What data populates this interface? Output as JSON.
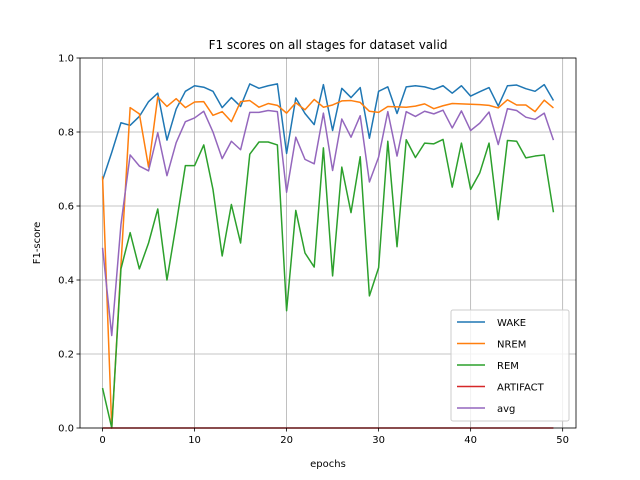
{
  "chart_data": {
    "type": "line",
    "title": "F1 scores on all stages for dataset valid",
    "xlabel": "epochs",
    "ylabel": "F1-score",
    "xlim": [
      -2.45,
      51.45
    ],
    "ylim": [
      0,
      1
    ],
    "xticks": [
      0,
      10,
      20,
      30,
      40,
      50
    ],
    "yticks": [
      0.0,
      0.2,
      0.4,
      0.6,
      0.8,
      1.0
    ],
    "ytick_labels": [
      "0.0",
      "0.2",
      "0.4",
      "0.6",
      "0.8",
      "1.0"
    ],
    "grid": true,
    "legend_position": "lower-right",
    "x": [
      0,
      1,
      2,
      3,
      4,
      5,
      6,
      7,
      8,
      9,
      10,
      11,
      12,
      13,
      14,
      15,
      16,
      17,
      18,
      19,
      20,
      21,
      22,
      23,
      24,
      25,
      26,
      27,
      28,
      29,
      30,
      31,
      32,
      33,
      34,
      35,
      36,
      37,
      38,
      39,
      40,
      41,
      42,
      43,
      44,
      45,
      46,
      47,
      48,
      49
    ],
    "series": [
      {
        "name": "WAKE",
        "color": "#1f77b4",
        "values": [
          0.67,
          0.745,
          0.825,
          0.818,
          0.842,
          0.882,
          0.905,
          0.778,
          0.862,
          0.91,
          0.925,
          0.921,
          0.91,
          0.866,
          0.893,
          0.869,
          0.93,
          0.918,
          0.925,
          0.93,
          0.742,
          0.892,
          0.85,
          0.82,
          0.928,
          0.804,
          0.918,
          0.893,
          0.92,
          0.783,
          0.91,
          0.922,
          0.85,
          0.922,
          0.925,
          0.922,
          0.915,
          0.925,
          0.905,
          0.925,
          0.897,
          0.909,
          0.92,
          0.87,
          0.925,
          0.927,
          0.917,
          0.91,
          0.928,
          0.885
        ]
      },
      {
        "name": "NREM",
        "color": "#ff7f0e",
        "values": [
          0.68,
          0.0,
          0.44,
          0.866,
          0.849,
          0.705,
          0.895,
          0.869,
          0.89,
          0.866,
          0.881,
          0.882,
          0.845,
          0.855,
          0.828,
          0.882,
          0.885,
          0.867,
          0.877,
          0.872,
          0.851,
          0.879,
          0.86,
          0.888,
          0.867,
          0.873,
          0.884,
          0.885,
          0.88,
          0.856,
          0.853,
          0.869,
          0.868,
          0.867,
          0.87,
          0.876,
          0.863,
          0.871,
          0.877,
          0.876,
          0.875,
          0.874,
          0.872,
          0.865,
          0.887,
          0.873,
          0.873,
          0.855,
          0.886,
          0.865
        ]
      },
      {
        "name": "REM",
        "color": "#2ca02c",
        "values": [
          0.108,
          0.0,
          0.43,
          0.528,
          0.43,
          0.5,
          0.592,
          0.4,
          0.55,
          0.709,
          0.709,
          0.765,
          0.645,
          0.465,
          0.604,
          0.5,
          0.74,
          0.773,
          0.773,
          0.765,
          0.317,
          0.588,
          0.473,
          0.435,
          0.757,
          0.411,
          0.705,
          0.582,
          0.733,
          0.357,
          0.433,
          0.775,
          0.49,
          0.779,
          0.731,
          0.77,
          0.768,
          0.78,
          0.651,
          0.77,
          0.645,
          0.69,
          0.77,
          0.563,
          0.777,
          0.775,
          0.73,
          0.735,
          0.738,
          0.583
        ]
      },
      {
        "name": "ARTIFACT",
        "color": "#d62728",
        "values": [
          0,
          0,
          0,
          0,
          0,
          0,
          0,
          0,
          0,
          0,
          0,
          0,
          0,
          0,
          0,
          0,
          0,
          0,
          0,
          0,
          0,
          0,
          0,
          0,
          0,
          0,
          0,
          0,
          0,
          0,
          0,
          0,
          0,
          0,
          0,
          0,
          0,
          0,
          0,
          0,
          0,
          0,
          0,
          0,
          0,
          0,
          0,
          0,
          0,
          0
        ]
      },
      {
        "name": "avg",
        "color": "#9467bd",
        "values": [
          0.487,
          0.25,
          0.55,
          0.738,
          0.708,
          0.695,
          0.798,
          0.682,
          0.771,
          0.828,
          0.838,
          0.856,
          0.8,
          0.728,
          0.775,
          0.752,
          0.853,
          0.853,
          0.858,
          0.855,
          0.637,
          0.786,
          0.726,
          0.714,
          0.851,
          0.696,
          0.835,
          0.786,
          0.844,
          0.665,
          0.732,
          0.855,
          0.735,
          0.855,
          0.842,
          0.856,
          0.849,
          0.859,
          0.811,
          0.857,
          0.804,
          0.824,
          0.854,
          0.766,
          0.863,
          0.858,
          0.84,
          0.834,
          0.851,
          0.778
        ]
      }
    ]
  }
}
